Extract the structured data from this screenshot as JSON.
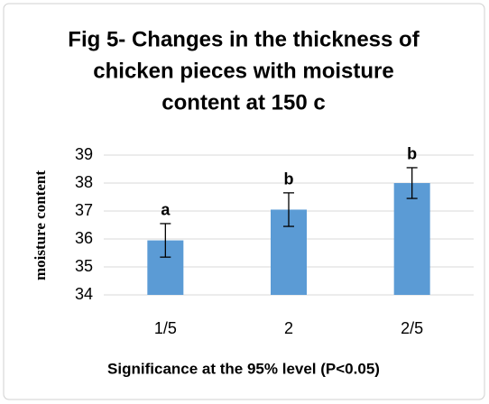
{
  "chart_data": {
    "type": "bar",
    "title": [
      "Fig 5- Changes in the thickness of",
      "chicken pieces with moisture",
      "content at 150 c"
    ],
    "x_label": "Significance at the 95% level (P<0.05)",
    "y_label": "moisture content",
    "categories": [
      "1/5",
      "2",
      "2/5"
    ],
    "values": [
      35.95,
      37.05,
      38.0
    ],
    "errors": [
      0.6,
      0.6,
      0.55
    ],
    "annotations": [
      "a",
      "b",
      "b"
    ],
    "color": "#5b9bd5",
    "ylim": [
      34,
      39
    ],
    "yticks": [
      34,
      35,
      36,
      37,
      38,
      39
    ],
    "grid": true
  }
}
